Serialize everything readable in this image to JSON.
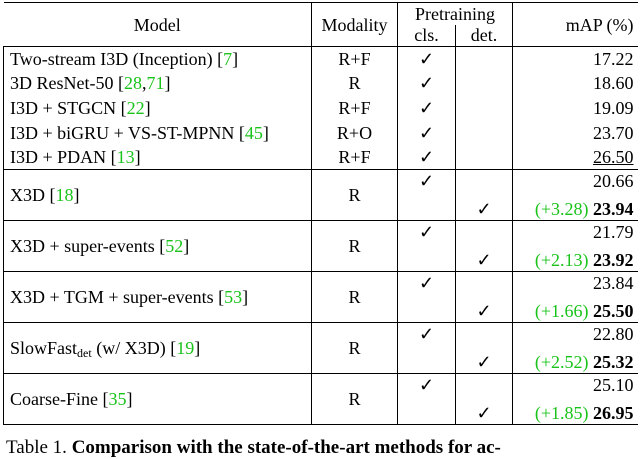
{
  "table": {
    "header": {
      "model": "Model",
      "modality": "Modality",
      "pretraining": "Pretraining",
      "cls": "cls.",
      "det": "det.",
      "map": "mAP (%)"
    },
    "rows": [
      {
        "model": [
          {
            "text": "Two-stream I3D (Inception) ["
          },
          {
            "text": "7",
            "ref": true
          },
          {
            "text": "]"
          }
        ],
        "modality": "R+F",
        "cls": "✓",
        "map": "17.22"
      },
      {
        "model": [
          {
            "text": "3D ResNet-50 ["
          },
          {
            "text": "28",
            "ref": true
          },
          {
            "text": ","
          },
          {
            "text": "71",
            "ref": true
          },
          {
            "text": "]"
          }
        ],
        "modality": "R",
        "cls": "✓",
        "map": "18.60"
      },
      {
        "model": [
          {
            "text": "I3D + STGCN ["
          },
          {
            "text": "22",
            "ref": true
          },
          {
            "text": "]"
          }
        ],
        "modality": "R+F",
        "cls": "✓",
        "map": "19.09"
      },
      {
        "model": [
          {
            "text": "I3D + biGRU + VS-ST-MPNN ["
          },
          {
            "text": "45",
            "ref": true
          },
          {
            "text": "]"
          }
        ],
        "modality": "R+O",
        "cls": "✓",
        "map": "23.70"
      },
      {
        "model": [
          {
            "text": "I3D + PDAN ["
          },
          {
            "text": "13",
            "ref": true
          },
          {
            "text": "]"
          }
        ],
        "modality": "R+F",
        "cls": "✓",
        "map": "26.50",
        "underline": true
      },
      {
        "model": [
          {
            "text": "X3D ["
          },
          {
            "text": "18",
            "ref": true
          },
          {
            "text": "]"
          }
        ],
        "modality": "R",
        "cls": "✓",
        "det": "✓",
        "map": "20.66",
        "gain": "(+3.28)",
        "det_map": "23.94"
      },
      {
        "model": [
          {
            "text": "X3D + super-events ["
          },
          {
            "text": "52",
            "ref": true
          },
          {
            "text": "]"
          }
        ],
        "modality": "R",
        "cls": "✓",
        "det": "✓",
        "map": "21.79",
        "gain": "(+2.13)",
        "det_map": "23.92"
      },
      {
        "model": [
          {
            "text": "X3D + TGM + super-events ["
          },
          {
            "text": "53",
            "ref": true
          },
          {
            "text": "]"
          }
        ],
        "modality": "R",
        "cls": "✓",
        "det": "✓",
        "map": "23.84",
        "gain": "(+1.66)",
        "det_map": "25.50"
      },
      {
        "model": [
          {
            "text": "SlowFast"
          },
          {
            "text": "det",
            "sub": true
          },
          {
            "text": " (w/ X3D) ["
          },
          {
            "text": "19",
            "ref": true
          },
          {
            "text": "]"
          }
        ],
        "modality": "R",
        "cls": "✓",
        "det": "✓",
        "map": "22.80",
        "gain": "(+2.52)",
        "det_map": "25.32"
      },
      {
        "model": [
          {
            "text": "Coarse-Fine ["
          },
          {
            "text": "35",
            "ref": true
          },
          {
            "text": "]"
          }
        ],
        "modality": "R",
        "cls": "✓",
        "det": "✓",
        "map": "25.10",
        "gain": "(+1.85)",
        "det_map": "26.95"
      }
    ]
  },
  "caption": [
    {
      "text": "Table 1. "
    },
    {
      "text": "Comparison with the state-of-the-art methods for ac-",
      "bold": true
    }
  ]
}
